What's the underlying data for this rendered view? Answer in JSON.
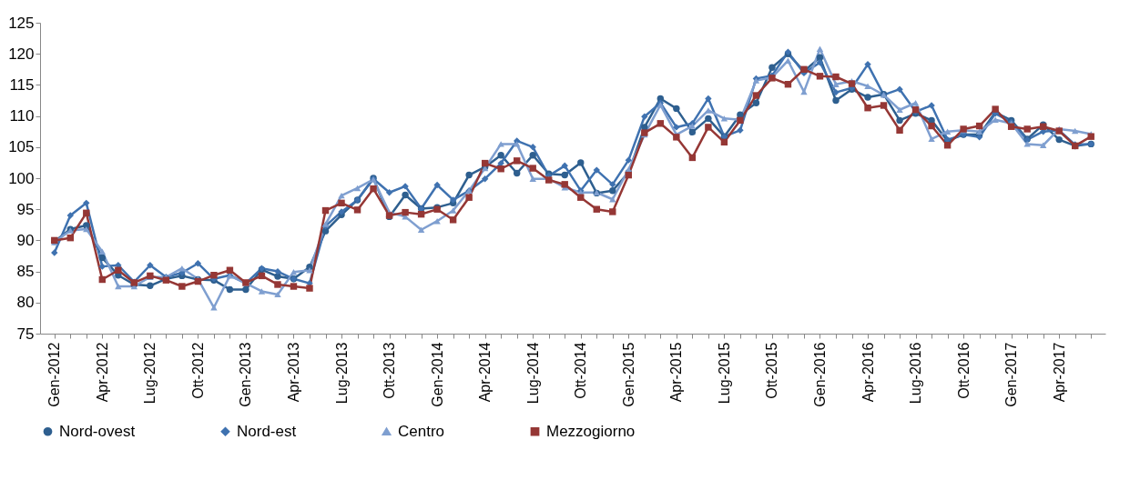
{
  "chart_data": {
    "type": "line",
    "categories": [
      "Gen-2012",
      null,
      null,
      "Apr-2012",
      null,
      null,
      "Lug-2012",
      null,
      null,
      "Ott-2012",
      null,
      null,
      "Gen-2013",
      null,
      null,
      "Apr-2013",
      null,
      null,
      "Lug-2013",
      null,
      null,
      "Ott-2013",
      null,
      null,
      "Gen-2014",
      null,
      null,
      "Apr-2014",
      null,
      null,
      "Lug-2014",
      null,
      null,
      "Ott-2014",
      null,
      null,
      "Gen-2015",
      null,
      null,
      "Apr-2015",
      null,
      null,
      "Lug-2015",
      null,
      null,
      "Ott-2015",
      null,
      null,
      "Gen-2016",
      null,
      null,
      "Apr-2016",
      null,
      null,
      "Lug-2016",
      null,
      null,
      "Ott-2016",
      null,
      null,
      "Gen-2017",
      null,
      null,
      "Apr-2017",
      null,
      null
    ],
    "series": [
      {
        "name": "Nord-ovest",
        "color": "#2e5f8f",
        "marker": "circle",
        "values": [
          89.8,
          91.8,
          92.4,
          87.2,
          84.4,
          82.9,
          82.7,
          83.8,
          84.3,
          83.7,
          83.6,
          82.1,
          82.1,
          85.3,
          84.2,
          83.8,
          85.7,
          91.5,
          94.1,
          96.5,
          100.0,
          93.8,
          97.3,
          95.1,
          95.3,
          96.0,
          100.5,
          101.8,
          103.7,
          100.8,
          103.7,
          100.7,
          100.5,
          102.5,
          97.6,
          98.0,
          100.9,
          108.2,
          112.8,
          111.2,
          107.4,
          109.6,
          106.7,
          110.2,
          112.1,
          117.8,
          120.0,
          117.2,
          119.4,
          112.5,
          114.3,
          113.0,
          113.5,
          109.3,
          110.4,
          109.3,
          106.0,
          107.0,
          107.0,
          110.6,
          109.3,
          106.3,
          108.6,
          106.2,
          105.2,
          105.5
        ]
      },
      {
        "name": "Nord-est",
        "color": "#3f72b0",
        "marker": "diamond",
        "values": [
          88.0,
          94.0,
          96.0,
          85.8,
          86.0,
          83.3,
          86.0,
          84.1,
          84.8,
          86.3,
          83.8,
          84.4,
          83.1,
          85.5,
          85.0,
          83.8,
          83.1,
          92.3,
          94.6,
          96.5,
          99.9,
          97.7,
          98.7,
          95.1,
          98.9,
          96.5,
          98.0,
          99.9,
          102.4,
          106.0,
          105.0,
          100.4,
          102.0,
          98.0,
          101.3,
          99.0,
          102.9,
          109.9,
          112.1,
          108.2,
          108.8,
          112.8,
          106.7,
          107.7,
          116.0,
          116.5,
          120.3,
          116.9,
          118.6,
          113.8,
          114.5,
          118.3,
          113.4,
          114.3,
          110.7,
          111.7,
          106.2,
          107.0,
          106.6,
          110.4,
          109.0,
          106.2,
          107.5,
          107.7,
          105.4,
          105.5
        ]
      },
      {
        "name": "Centro",
        "color": "#7f9fd0",
        "marker": "triangle",
        "values": [
          89.7,
          91.6,
          91.8,
          88.2,
          82.6,
          82.6,
          84.1,
          84.1,
          85.5,
          83.8,
          79.2,
          84.3,
          83.1,
          81.8,
          81.3,
          84.9,
          85.2,
          92.6,
          97.2,
          98.4,
          99.8,
          94.5,
          93.8,
          91.7,
          93.1,
          94.8,
          98.0,
          101.6,
          105.5,
          105.5,
          99.9,
          99.9,
          98.5,
          97.7,
          97.7,
          96.6,
          101.4,
          107.0,
          111.8,
          107.0,
          108.4,
          110.9,
          109.6,
          109.4,
          115.7,
          116.2,
          118.9,
          113.9,
          120.8,
          115.1,
          115.6,
          114.8,
          113.4,
          111.0,
          112.1,
          106.3,
          107.5,
          107.7,
          107.5,
          109.4,
          108.8,
          105.5,
          105.3,
          107.9,
          107.6,
          107.1
        ]
      },
      {
        "name": "Mezzogiorno",
        "color": "#953735",
        "marker": "square",
        "values": [
          90.0,
          90.4,
          94.4,
          83.7,
          85.2,
          83.2,
          84.3,
          83.6,
          82.6,
          83.4,
          84.4,
          85.2,
          83.2,
          84.3,
          82.9,
          82.6,
          82.3,
          94.8,
          96.0,
          94.9,
          98.3,
          94.0,
          94.5,
          94.2,
          95.0,
          93.3,
          96.9,
          102.4,
          101.5,
          102.8,
          101.6,
          99.7,
          99.0,
          96.9,
          95.0,
          94.6,
          100.5,
          107.3,
          108.8,
          106.6,
          103.3,
          108.2,
          105.8,
          109.3,
          113.3,
          116.1,
          115.1,
          117.5,
          116.4,
          116.3,
          115.2,
          111.3,
          111.7,
          107.7,
          111.0,
          108.4,
          105.3,
          107.9,
          108.4,
          111.1,
          108.3,
          107.9,
          108.3,
          107.6,
          105.2,
          106.7
        ]
      }
    ],
    "ylim": [
      75,
      125
    ],
    "yticks": [
      75,
      80,
      85,
      90,
      95,
      100,
      105,
      110,
      115,
      120,
      125
    ],
    "grid": false,
    "legend": "bottom"
  }
}
